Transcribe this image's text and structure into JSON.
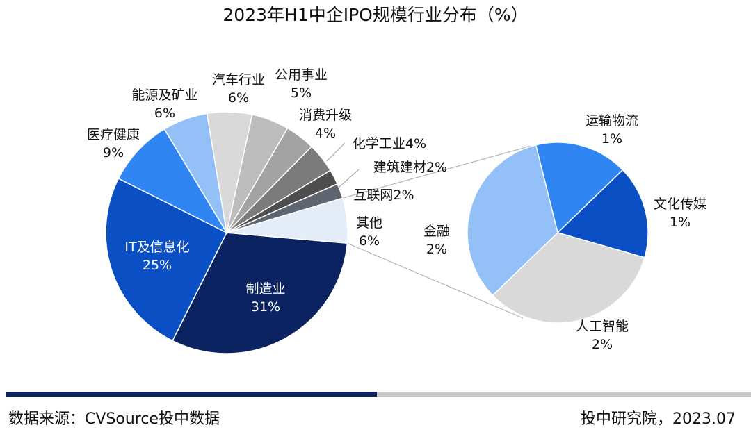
{
  "title": "2023年H1中企IPO规模行业分布（%）",
  "chart_data": [
    {
      "type": "pie",
      "title": "2023年H1中企IPO规模行业分布（%）",
      "slices": [
        {
          "label": "制造业",
          "value": 31,
          "display": "31%",
          "color": "#0b2360"
        },
        {
          "label": "IT及信息化",
          "value": 25,
          "display": "25%",
          "color": "#0b4fc4"
        },
        {
          "label": "医疗健康",
          "value": 9,
          "display": "9%",
          "color": "#2f86f2"
        },
        {
          "label": "能源及矿业",
          "value": 6,
          "display": "6%",
          "color": "#94c0f8"
        },
        {
          "label": "汽车行业",
          "value": 6,
          "display": "6%",
          "color": "#d9d9d9"
        },
        {
          "label": "公用事业",
          "value": 5,
          "display": "5%",
          "color": "#bdbdbd"
        },
        {
          "label": "消费升级",
          "value": 4,
          "display": "4%",
          "color": "#a3a3a3"
        },
        {
          "label": "化学工业",
          "value": 4,
          "display": "4%",
          "color": "#7b7b7b"
        },
        {
          "label": "建筑建材",
          "value": 2,
          "display": "2%",
          "color": "#4e4e4e"
        },
        {
          "label": "互联网",
          "value": 2,
          "display": "2%",
          "color": "#5e6470"
        },
        {
          "label": "其他",
          "value": 6,
          "display": "6%",
          "color": "#e4ecf7"
        }
      ]
    },
    {
      "type": "pie",
      "breakdown_of": "其他",
      "slices": [
        {
          "label": "运输物流",
          "value": 1,
          "display": "1%",
          "color": "#2f86f2"
        },
        {
          "label": "文化传媒",
          "value": 1,
          "display": "1%",
          "color": "#0b4fc4"
        },
        {
          "label": "人工智能",
          "value": 2,
          "display": "2%",
          "color": "#d9d9d9"
        },
        {
          "label": "金融",
          "value": 2,
          "display": "2%",
          "color": "#94c0f8"
        }
      ]
    }
  ],
  "footer": {
    "source": "数据来源：CVSource投中数据",
    "credit": "投中研究院，2023.07"
  },
  "colors": {
    "bar_dark": "#0b2360",
    "bar_light": "#c8c8c8",
    "connector": "#b5b5b5"
  }
}
